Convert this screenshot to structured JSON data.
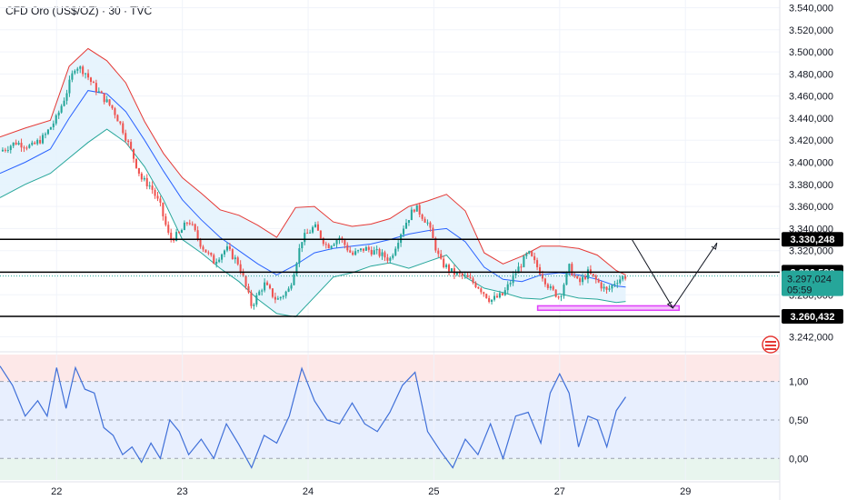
{
  "header": {
    "title": "CFD Oro (US$/OZ) · 30 · TVC"
  },
  "colors": {
    "up": "#26a69a",
    "down": "#ef5350",
    "bb_upper": "#e53935",
    "bb_lower": "#26a69a",
    "bb_mid": "#2962ff",
    "bb_fill": "#e3f2fd",
    "osc_line": "#3f6fd8",
    "osc_upper_zone": "#fde8e8",
    "osc_mid_zone": "#e8effe",
    "osc_lower_zone": "#e8f5ee",
    "target_box": "#e040fb",
    "price_tag": "#26a69a"
  },
  "chart_data": {
    "type": "candlestick",
    "title": "CFD Oro (US$/OZ) · 30 · TVC",
    "x_tick_labels": [
      "22",
      "23",
      "24",
      "25",
      "27",
      "29"
    ],
    "x_ticks_x": [
      0.6,
      4.6,
      8.6,
      12.6,
      16.6,
      20.6
    ],
    "x_range": [
      -1.2,
      23.6
    ],
    "price_axis": {
      "ylim": [
        3230,
        3547
      ],
      "ticks": [
        3242,
        3260,
        3280,
        3300,
        3320,
        3340,
        3360,
        3380,
        3400,
        3420,
        3440,
        3460,
        3480,
        3500,
        3520,
        3540
      ],
      "tick_labels": [
        "3.242,000",
        "3.260,000",
        "3.280,000",
        "3.300,000",
        "3.320,000",
        "3.340,000",
        "3.360,000",
        "3.380,000",
        "3.400,000",
        "3.420,000",
        "3.440,000",
        "3.460,000",
        "3.480,000",
        "3.500,000",
        "3.520,000",
        "3.540,000"
      ]
    },
    "price_path_x": [
      -1.2,
      -0.7,
      -0.2,
      0.2,
      0.6,
      0.9,
      1.2,
      1.5,
      1.8,
      2.1,
      2.4,
      2.7,
      3.0,
      3.3,
      3.6,
      3.9,
      4.2,
      4.5,
      4.8,
      5.2,
      5.6,
      6.0,
      6.4,
      6.8,
      7.2,
      7.6,
      8.0,
      8.4,
      8.8,
      9.2,
      9.6,
      10.0,
      10.4,
      10.8,
      11.2,
      11.6,
      12.0,
      12.4,
      12.8,
      13.2,
      13.6,
      14.0,
      14.4,
      14.8,
      15.2,
      15.6,
      16.0,
      16.3,
      16.6,
      16.9,
      17.2,
      17.5,
      17.8,
      18.1,
      18.4,
      18.7
    ],
    "price_path_y": [
      3410,
      3418,
      3414,
      3423,
      3440,
      3462,
      3488,
      3482,
      3468,
      3458,
      3448,
      3430,
      3408,
      3385,
      3378,
      3360,
      3330,
      3335,
      3348,
      3325,
      3310,
      3322,
      3308,
      3270,
      3290,
      3275,
      3285,
      3330,
      3342,
      3324,
      3332,
      3316,
      3322,
      3318,
      3312,
      3340,
      3360,
      3345,
      3310,
      3300,
      3296,
      3288,
      3275,
      3280,
      3300,
      3318,
      3300,
      3285,
      3278,
      3305,
      3290,
      3300,
      3292,
      3283,
      3293,
      3297
    ],
    "bollinger": {
      "x": [
        -1.2,
        -0.4,
        0.4,
        1.0,
        1.6,
        2.2,
        2.8,
        3.4,
        4.0,
        4.6,
        5.2,
        5.8,
        6.4,
        7.0,
        7.6,
        8.2,
        8.8,
        9.4,
        10.0,
        10.6,
        11.2,
        11.8,
        12.4,
        13.0,
        13.6,
        14.2,
        14.8,
        15.4,
        16.0,
        16.6,
        17.2,
        17.8,
        18.4,
        18.7
      ],
      "upper": [
        3423,
        3431,
        3438,
        3487,
        3503,
        3492,
        3472,
        3437,
        3408,
        3386,
        3372,
        3357,
        3352,
        3343,
        3332,
        3359,
        3360,
        3346,
        3342,
        3344,
        3349,
        3360,
        3365,
        3371,
        3356,
        3318,
        3308,
        3315,
        3324,
        3324,
        3322,
        3316,
        3302,
        3298
      ],
      "middle": [
        3390,
        3400,
        3412,
        3440,
        3465,
        3462,
        3446,
        3420,
        3392,
        3366,
        3348,
        3332,
        3320,
        3308,
        3298,
        3307,
        3318,
        3322,
        3324,
        3326,
        3330,
        3335,
        3338,
        3340,
        3328,
        3305,
        3294,
        3292,
        3298,
        3300,
        3298,
        3294,
        3288,
        3287
      ],
      "lower": [
        3368,
        3380,
        3390,
        3404,
        3418,
        3430,
        3418,
        3396,
        3366,
        3330,
        3318,
        3304,
        3292,
        3276,
        3263,
        3260,
        3278,
        3296,
        3300,
        3306,
        3309,
        3304,
        3310,
        3316,
        3296,
        3286,
        3282,
        3277,
        3276,
        3281,
        3277,
        3276,
        3273,
        3274
      ]
    },
    "horizontal_levels": [
      {
        "value": 3330.248,
        "label": "3.330,248"
      },
      {
        "value": 3300.538,
        "label": "3.300,538"
      },
      {
        "value": 3260.432,
        "label": "3.260,432"
      }
    ],
    "current_price": {
      "value": 3297.024,
      "label": "3.297,024",
      "countdown": "05:59"
    },
    "target_box": {
      "x_start": 15.9,
      "x_end": 20.4,
      "y_low": 3266,
      "y_high": 3270
    },
    "projection_path": {
      "x": [
        18.9,
        20.2,
        21.6
      ],
      "y": [
        3330,
        3268,
        3327
      ]
    },
    "oscillator": {
      "ylim": [
        -0.28,
        1.35
      ],
      "ticks": [
        0.0,
        0.5,
        1.0
      ],
      "tick_labels": [
        "0,00",
        "0,50",
        "1,00"
      ],
      "zone_upper": 1.0,
      "zone_lower": 0.0,
      "x": [
        -1.2,
        -0.8,
        -0.4,
        0.0,
        0.3,
        0.6,
        0.9,
        1.2,
        1.5,
        1.8,
        2.1,
        2.4,
        2.7,
        3.0,
        3.3,
        3.6,
        3.9,
        4.2,
        4.5,
        4.8,
        5.2,
        5.6,
        6.0,
        6.4,
        6.8,
        7.2,
        7.6,
        8.0,
        8.4,
        8.8,
        9.2,
        9.6,
        10.0,
        10.4,
        10.8,
        11.2,
        11.6,
        12.0,
        12.4,
        12.8,
        13.2,
        13.6,
        14.0,
        14.4,
        14.8,
        15.2,
        15.6,
        16.0,
        16.3,
        16.6,
        16.9,
        17.2,
        17.5,
        17.8,
        18.1,
        18.4,
        18.7
      ],
      "y": [
        1.2,
        0.95,
        0.55,
        0.75,
        0.55,
        1.18,
        0.65,
        1.18,
        0.9,
        0.85,
        0.4,
        0.3,
        0.05,
        0.15,
        -0.05,
        0.2,
        0.0,
        0.5,
        0.35,
        0.05,
        0.25,
        0.0,
        0.45,
        0.18,
        -0.12,
        0.3,
        0.2,
        0.55,
        1.17,
        0.75,
        0.5,
        0.45,
        0.72,
        0.45,
        0.35,
        0.6,
        0.95,
        1.12,
        0.35,
        0.1,
        -0.12,
        0.25,
        0.05,
        0.45,
        0.0,
        0.55,
        0.6,
        0.2,
        0.85,
        1.1,
        0.85,
        0.15,
        0.55,
        0.5,
        0.15,
        0.62,
        0.8
      ]
    }
  }
}
